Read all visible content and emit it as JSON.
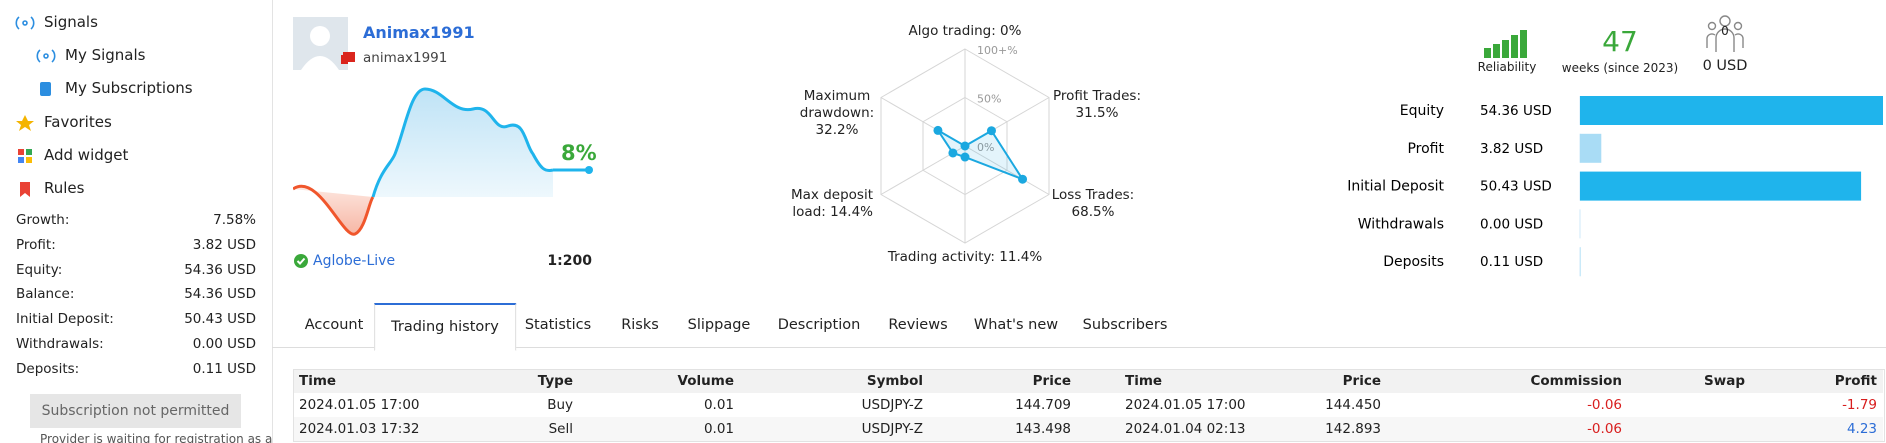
{
  "sidebar": {
    "menu": [
      "Signals",
      "My Signals",
      "My Subscriptions",
      "Favorites",
      "Add widget",
      "Rules"
    ],
    "stats": [
      [
        "Growth:",
        "7.58%"
      ],
      [
        "Profit:",
        "3.82 USD"
      ],
      [
        "Equity:",
        "54.36 USD"
      ],
      [
        "Balance:",
        "54.36 USD"
      ],
      [
        "Initial Deposit:",
        "50.43 USD"
      ],
      [
        "Withdrawals:",
        "0.00 USD"
      ],
      [
        "Deposits:",
        "0.11 USD"
      ]
    ],
    "button": "Subscription not permitted",
    "note": "Provider is waiting for registration as a"
  },
  "profile": {
    "name": "Animax1991",
    "login": "animax1991",
    "growth": "8%",
    "broker": "Aglobe-Live",
    "leverage": "1:200"
  },
  "radar": {
    "type": "radar",
    "rings": [
      {
        "value": 100,
        "label": "100+%"
      },
      {
        "value": 50,
        "label": "50%"
      },
      {
        "value": 0,
        "label": "0%"
      }
    ],
    "axes": [
      {
        "label": "Algo trading:",
        "value": 0,
        "value_label": "0%"
      },
      {
        "label": "Profit Trades:",
        "value": 31.5,
        "value_label": "31.5%"
      },
      {
        "label": "Loss Trades:",
        "value": 68.5,
        "value_label": "68.5%"
      },
      {
        "label": "Trading activity:",
        "value": 11.4,
        "value_label": "11.4%"
      },
      {
        "label": "Max deposit load:",
        "value": 14.4,
        "value_label": "14.4%"
      },
      {
        "label": "Maximum drawdown:",
        "value": 32.2,
        "value_label": "32.2%"
      }
    ],
    "color": "#1ba8e0"
  },
  "summary": {
    "reliability": "Reliability",
    "weeks": "47",
    "weeks_label": "weeks (since 2023)",
    "subscribers": "0",
    "subscribers_funds": "0 USD"
  },
  "balance_bars": {
    "type": "bar",
    "categories": [
      "Equity",
      "Profit",
      "Initial Deposit",
      "Withdrawals",
      "Deposits"
    ],
    "values": [
      54.36,
      3.82,
      50.43,
      0,
      0.11
    ],
    "value_labels": [
      "54.36 USD",
      "3.82 USD",
      "50.43 USD",
      "0.00 USD",
      "0.11 USD"
    ],
    "colors": [
      "#1fb4ec",
      "#a9dcf5",
      "#1fb4ec",
      "#a9dcf5",
      "#a9dcf5"
    ]
  },
  "tabs": {
    "items": [
      "Account",
      "Trading history",
      "Statistics",
      "Risks",
      "Slippage",
      "Description",
      "Reviews",
      "What's new",
      "Subscribers"
    ],
    "active": 1
  },
  "table": {
    "columns": [
      "Time",
      "Type",
      "Volume",
      "Symbol",
      "Price",
      "Time",
      "Price",
      "Commission",
      "Swap",
      "Profit"
    ],
    "rows": [
      [
        "2024.01.05 17:00",
        "Buy",
        "0.01",
        "USDJPY-Z",
        "144.709",
        "2024.01.05 17:00",
        "144.450",
        "-0.06",
        null,
        "-1.79"
      ],
      [
        "2024.01.03 17:32",
        "Sell",
        "0.01",
        "USDJPY-Z",
        "143.498",
        "2024.01.04 02:13",
        "142.893",
        "-0.06",
        null,
        "4.23"
      ]
    ]
  }
}
